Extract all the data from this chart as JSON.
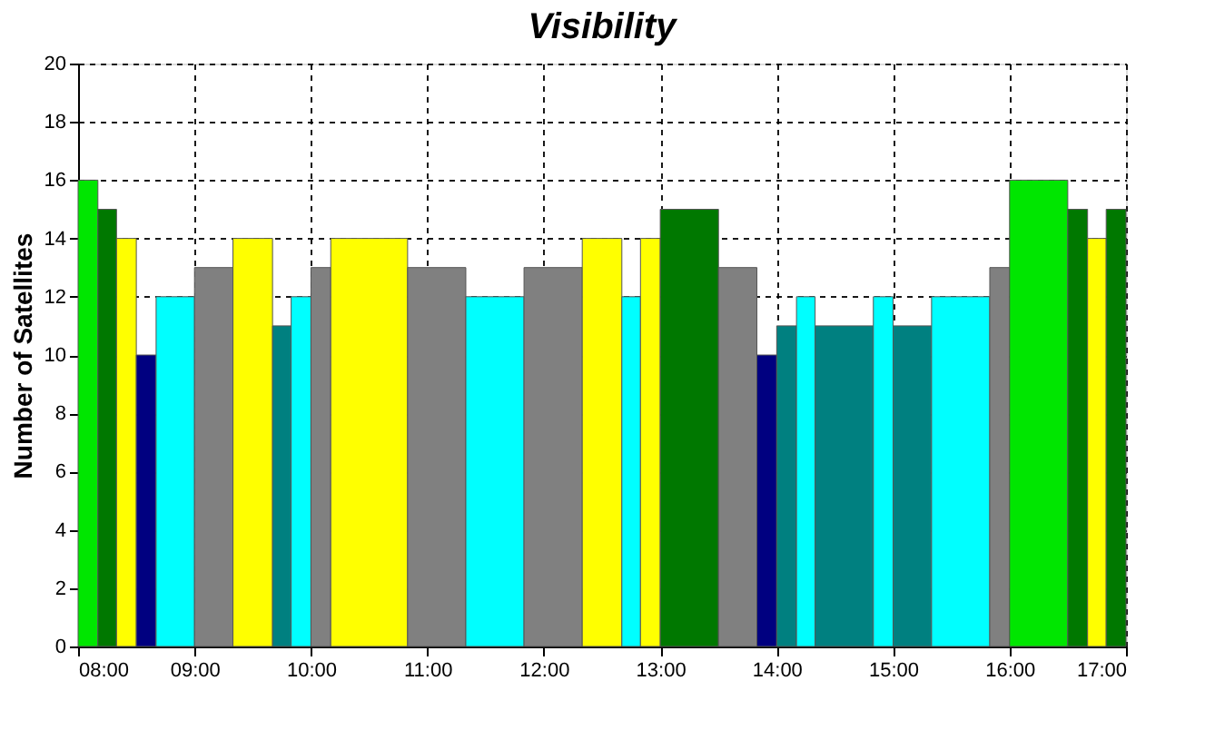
{
  "chart_data": {
    "type": "histogram",
    "title": "Visibility",
    "ylabel": "Number of Satellites",
    "bins": [
      8,
      8.17,
      8.33,
      8.5,
      8.67,
      9,
      9.33,
      9.67,
      9.83,
      10,
      10.17,
      10.83,
      11.33,
      11.83,
      12.33,
      12.67,
      12.83,
      13,
      13.5,
      13.83,
      14,
      14.17,
      14.33,
      14.83,
      15,
      15.33,
      15.83,
      16,
      16.5,
      16.67,
      16.83,
      17
    ],
    "values": [
      16,
      15,
      14,
      10,
      12,
      13,
      14,
      11,
      12,
      13,
      14,
      13,
      12,
      13,
      14,
      12,
      14,
      15,
      13,
      10,
      11,
      12,
      11,
      12,
      11,
      12,
      13,
      16,
      15,
      14,
      15
    ],
    "colors": [
      "#00e600",
      "#007800",
      "#ffff00",
      "#000080",
      "#00ffff",
      "#808080",
      "#ffff00",
      "#008080",
      "#00ffff",
      "#808080",
      "#ffff00",
      "#808080",
      "#00ffff",
      "#808080",
      "#ffff00",
      "#00ffff",
      "#ffff00",
      "#007800",
      "#808080",
      "#000080",
      "#008080",
      "#00ffff",
      "#008080",
      "#00ffff",
      "#008080",
      "#00ffff",
      "#808080",
      "#00e600",
      "#007800",
      "#ffff00",
      "#007800"
    ],
    "xlim": [
      8,
      17
    ],
    "xticks": [
      {
        "value": 8,
        "label": "08:00"
      },
      {
        "value": 9,
        "label": "09:00"
      },
      {
        "value": 10,
        "label": "10:00"
      },
      {
        "value": 11,
        "label": "11:00"
      },
      {
        "value": 12,
        "label": "12:00"
      },
      {
        "value": 13,
        "label": "13:00"
      },
      {
        "value": 14,
        "label": "14:00"
      },
      {
        "value": 15,
        "label": "15:00"
      },
      {
        "value": 16,
        "label": "16:00"
      },
      {
        "value": 17,
        "label": "17:00"
      }
    ],
    "ylim": [
      0,
      20
    ],
    "yticks": [
      0,
      2,
      4,
      6,
      8,
      10,
      12,
      14,
      16,
      18,
      20
    ],
    "grid": true
  }
}
